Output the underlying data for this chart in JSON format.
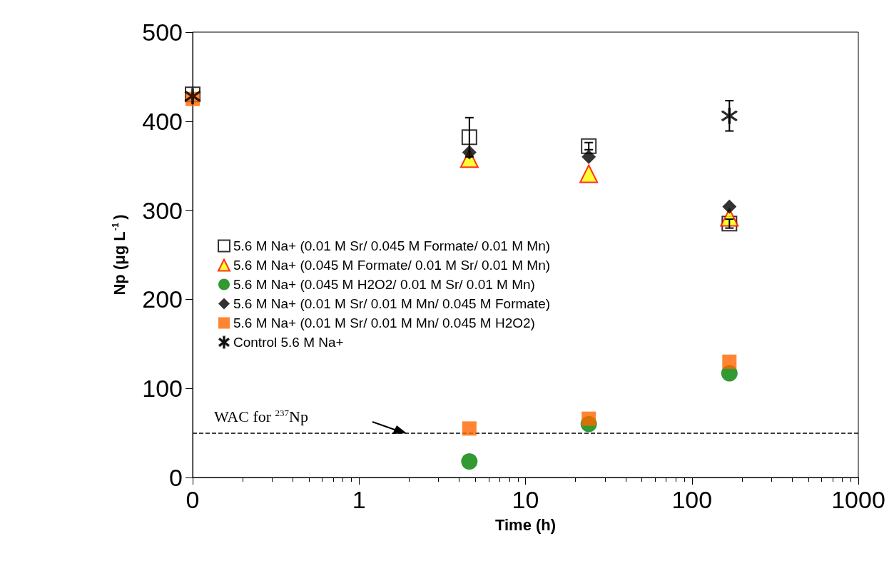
{
  "chart_data": {
    "type": "scatter",
    "xlabel": "Time (h)",
    "ylabel": "Np (μg L$^{-1}$)",
    "log": "x",
    "x": [
      0.1,
      4.6,
      24,
      168
    ],
    "xlim": [
      0.1,
      1000
    ],
    "xticks": [
      {
        "value": 0.1,
        "label": "0"
      },
      1,
      10,
      100,
      1000
    ],
    "ylim": [
      0,
      500
    ],
    "yticks": [
      0,
      100,
      200,
      300,
      400,
      500
    ],
    "legend": "left",
    "grid": false,
    "series": [
      {
        "name": "5.6 M Na+ (0.01 M Sr/ 0.045 M Formate/ 0.01 M Mn)",
        "color": "#ffffff",
        "marker": "square",
        "values": [
          430,
          382,
          372,
          285
        ],
        "errors": [
          null,
          22,
          4,
          5
        ]
      },
      {
        "name": "5.6 M Na+ (0.045 M Formate/ 0.01 M Sr/ 0.01 M Mn)",
        "color": "#ffff00",
        "marker": "triangle",
        "values": [
          null,
          358,
          341,
          292
        ]
      },
      {
        "name": "5.6 M Na+ (0.045 M H2O2/ 0.01 M Sr/ 0.01 M Mn)",
        "color": "#008000",
        "marker": "circle",
        "values": [
          null,
          18,
          60,
          117
        ]
      },
      {
        "name": "5.6 M Na+ (0.01 M Sr/ 0.01 M Mn/ 0.045 M Formate)",
        "color": "#000000",
        "marker": "diamond",
        "values": [
          null,
          365,
          360,
          304
        ]
      },
      {
        "name": "5.6 M Na+ (0.01 M Sr/ 0.01 M Mn/ 0.045 M H2O2)",
        "color": "#ff6600",
        "marker": "square",
        "values": [
          425,
          55,
          66,
          130
        ]
      },
      {
        "name": "Control 5.6 M Na+",
        "color": "#000000",
        "marker": "star",
        "values": [
          428,
          null,
          null,
          406
        ],
        "errors": [
          null,
          null,
          null,
          17
        ]
      }
    ],
    "ref_lines": [
      {
        "axis": "y",
        "value": 50,
        "label": "WAC for $^{237}$Np",
        "line_style": "dashed",
        "color": "#000000"
      }
    ]
  }
}
